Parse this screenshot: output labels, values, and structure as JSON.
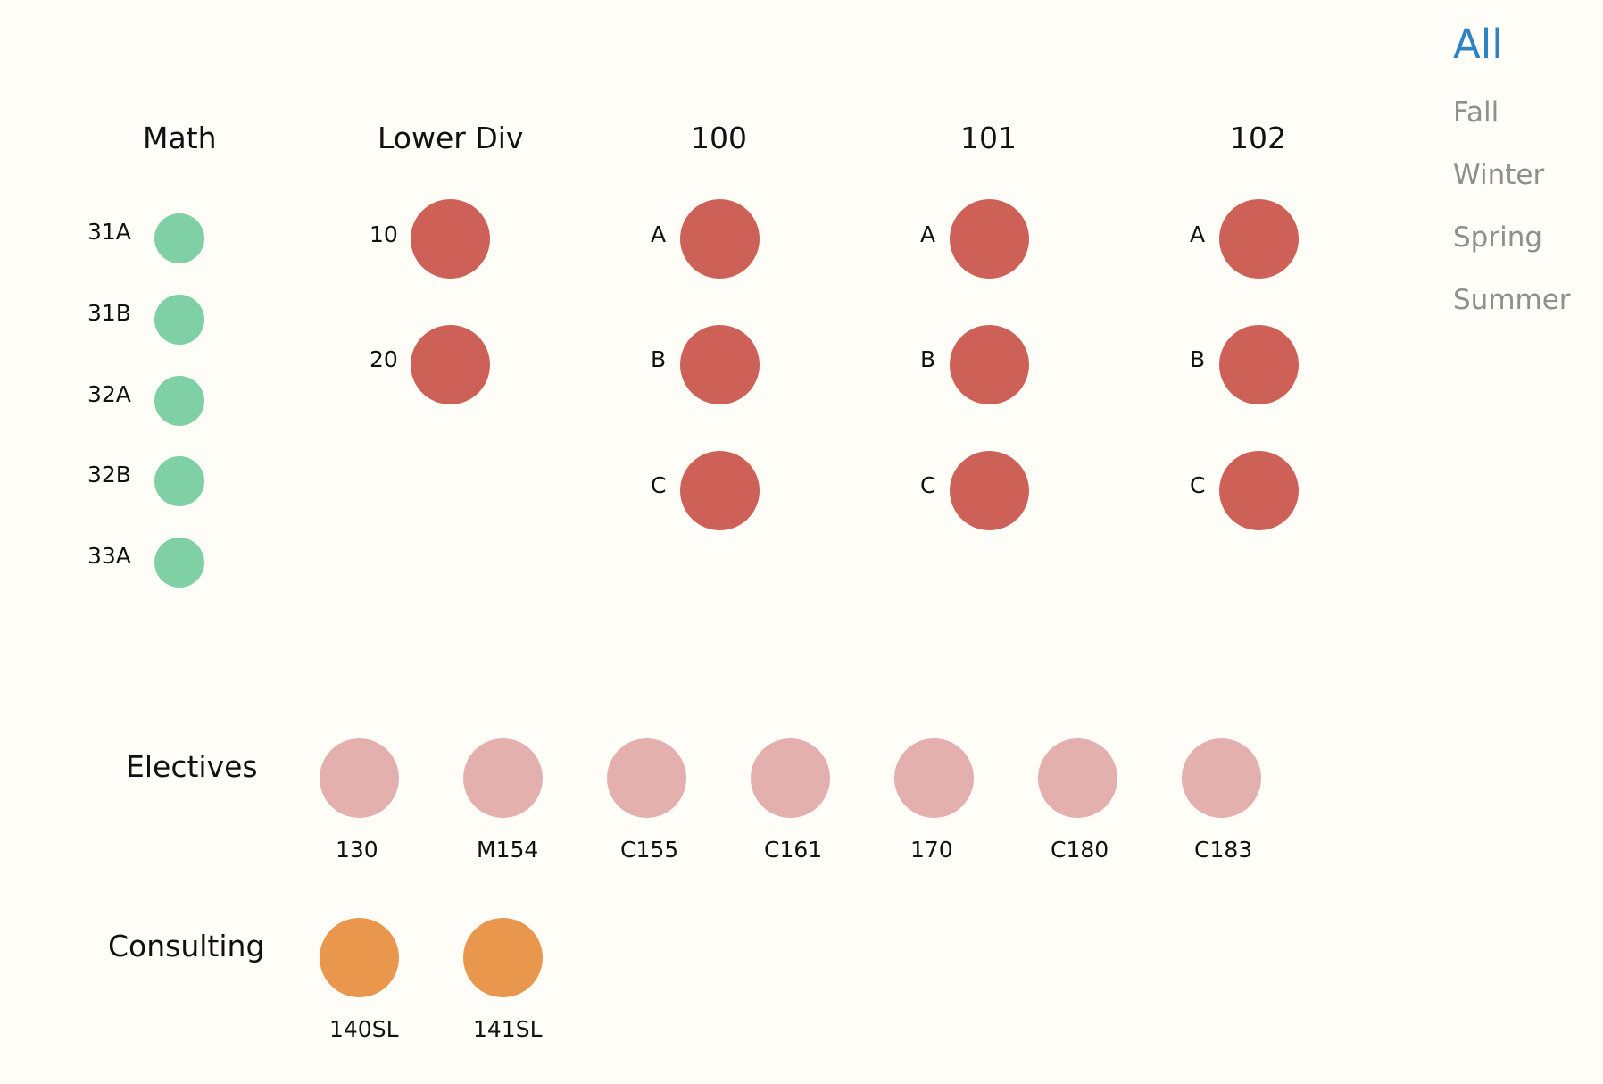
{
  "colors": {
    "math": "#7fd0a4",
    "core": "#cd6157",
    "electives": "#e4b0ad",
    "consulting": "#e9974c",
    "active_nav": "#2f83c3",
    "inactive_nav": "#8f8f8f",
    "background": "#fffdf8"
  },
  "filters": {
    "items": [
      {
        "label": "All",
        "active": true
      },
      {
        "label": "Fall",
        "active": false
      },
      {
        "label": "Winter",
        "active": false
      },
      {
        "label": "Spring",
        "active": false
      },
      {
        "label": "Summer",
        "active": false
      }
    ]
  },
  "groups": {
    "math": {
      "title": "Math",
      "courses": [
        "31A",
        "31B",
        "32A",
        "32B",
        "33A"
      ]
    },
    "lower_div": {
      "title": "Lower Div",
      "courses": [
        "10",
        "20"
      ]
    },
    "s100": {
      "title": "100",
      "courses": [
        "A",
        "B",
        "C"
      ]
    },
    "s101": {
      "title": "101",
      "courses": [
        "A",
        "B",
        "C"
      ]
    },
    "s102": {
      "title": "102",
      "courses": [
        "A",
        "B",
        "C"
      ]
    },
    "electives": {
      "title": "Electives",
      "courses": [
        "130",
        "M154",
        "C155",
        "C161",
        "170",
        "C180",
        "C183"
      ]
    },
    "consulting": {
      "title": "Consulting",
      "courses": [
        "140SL",
        "141SL"
      ]
    }
  }
}
